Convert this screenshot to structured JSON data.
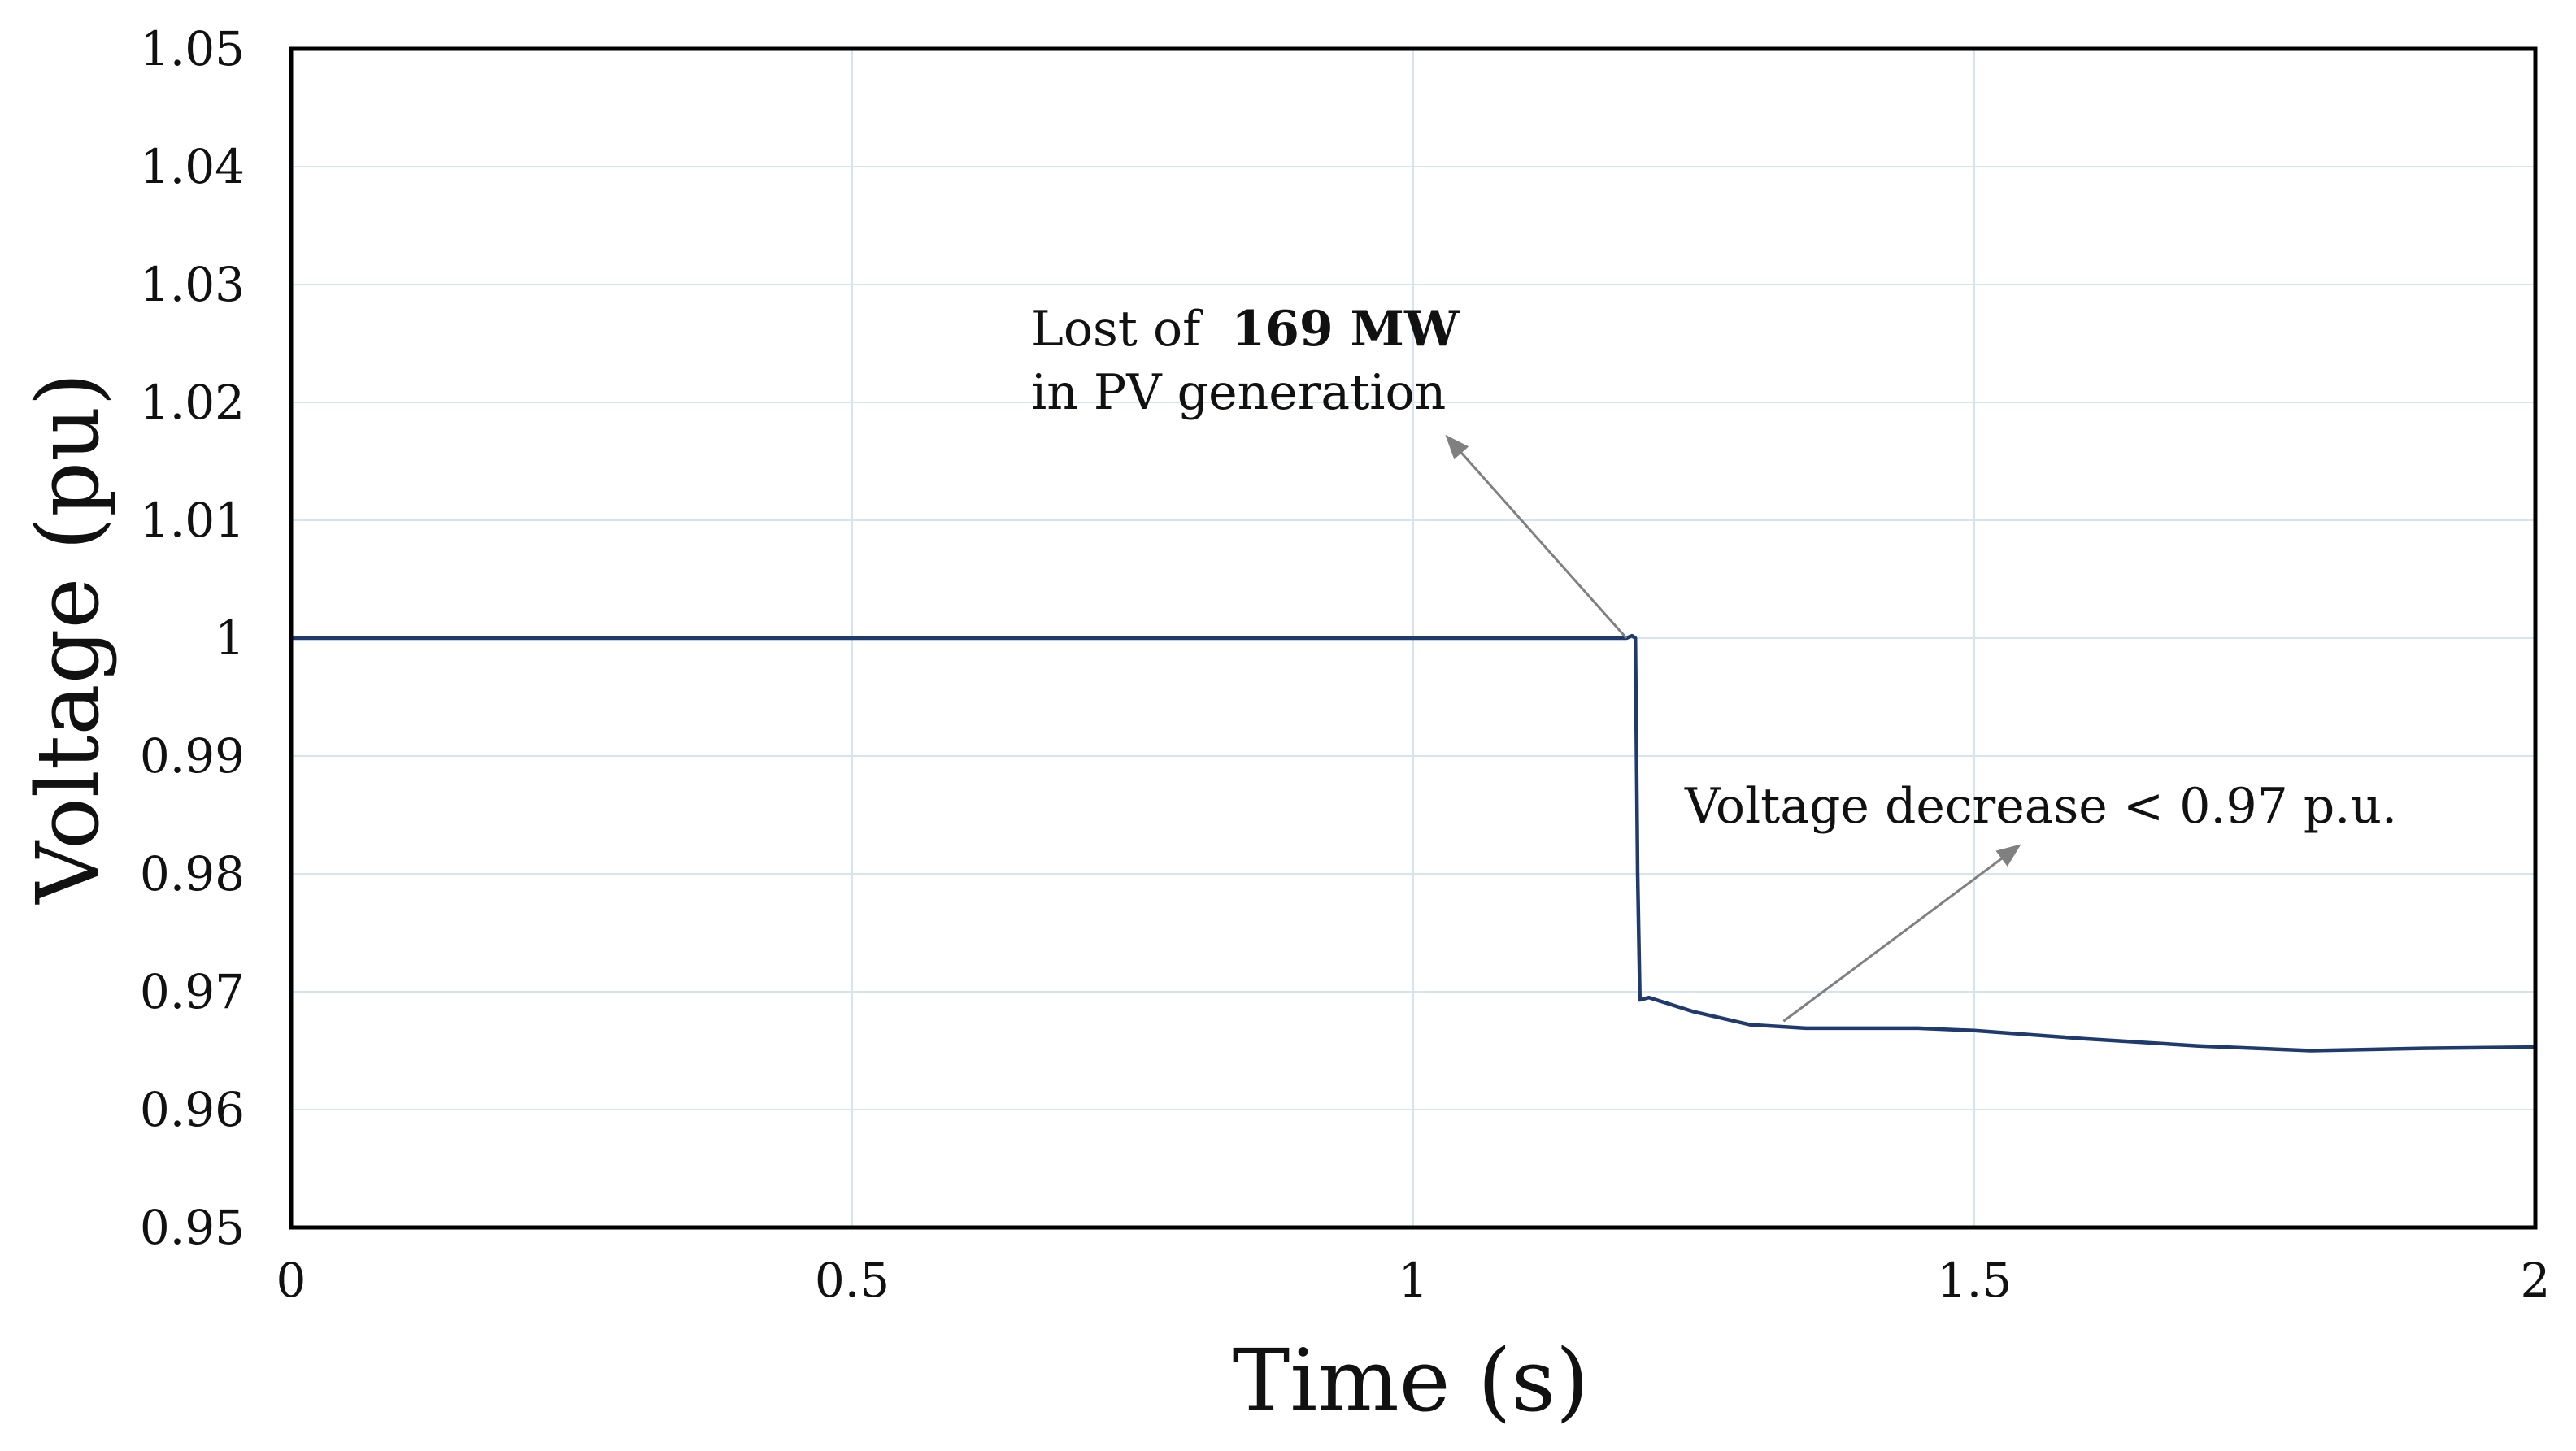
{
  "chart_data": {
    "type": "line",
    "title": "",
    "xlabel": "Time (s)",
    "ylabel": "Voltage (pu)",
    "xlim": [
      0,
      2
    ],
    "ylim": [
      0.95,
      1.05
    ],
    "grid": true,
    "x_ticks": [
      0,
      0.5,
      1,
      1.5,
      2
    ],
    "x_tick_labels": [
      "0",
      "0.5",
      "1",
      "1.5",
      "2"
    ],
    "y_ticks": [
      0.95,
      0.96,
      0.97,
      0.98,
      0.99,
      1,
      1.01,
      1.02,
      1.03,
      1.04,
      1.05
    ],
    "y_tick_labels": [
      "0.95",
      "0.96",
      "0.97",
      "0.98",
      "0.99",
      "1",
      "1.01",
      "1.02",
      "1.03",
      "1.04",
      "1.05"
    ],
    "series": [
      {
        "name": "Voltage",
        "color": "#1f3a6e",
        "x": [
          0,
          0.5,
          1.0,
          1.19,
          1.195,
          1.198,
          1.2,
          1.202,
          1.21,
          1.25,
          1.3,
          1.35,
          1.4,
          1.45,
          1.5,
          1.6,
          1.7,
          1.8,
          1.9,
          2.0
        ],
        "y": [
          1.0,
          1.0,
          1.0,
          1.0,
          1.0002,
          1.0,
          0.98,
          0.9693,
          0.9695,
          0.9683,
          0.9672,
          0.9669,
          0.9669,
          0.9669,
          0.9667,
          0.966,
          0.9654,
          0.965,
          0.9652,
          0.9653
        ]
      }
    ],
    "annotations": [
      {
        "name": "pv-loss",
        "line1_prefix": "Lost of ",
        "line1_bold": "169 MW",
        "line2": "in PV generation",
        "arrow_from": [
          1.19,
          1.0
        ],
        "arrow_to": [
          1.03,
          1.0171
        ]
      },
      {
        "name": "voltage-decrease",
        "text": "Voltage decrease < 0.97 p.u.",
        "arrow_from": [
          1.33,
          0.9675
        ],
        "arrow_to": [
          1.54,
          0.9824
        ]
      }
    ]
  },
  "colors": {
    "line": "#1f3a6e",
    "grid": "#d6e4ef",
    "axis": "#000000",
    "arrow": "#808080"
  }
}
